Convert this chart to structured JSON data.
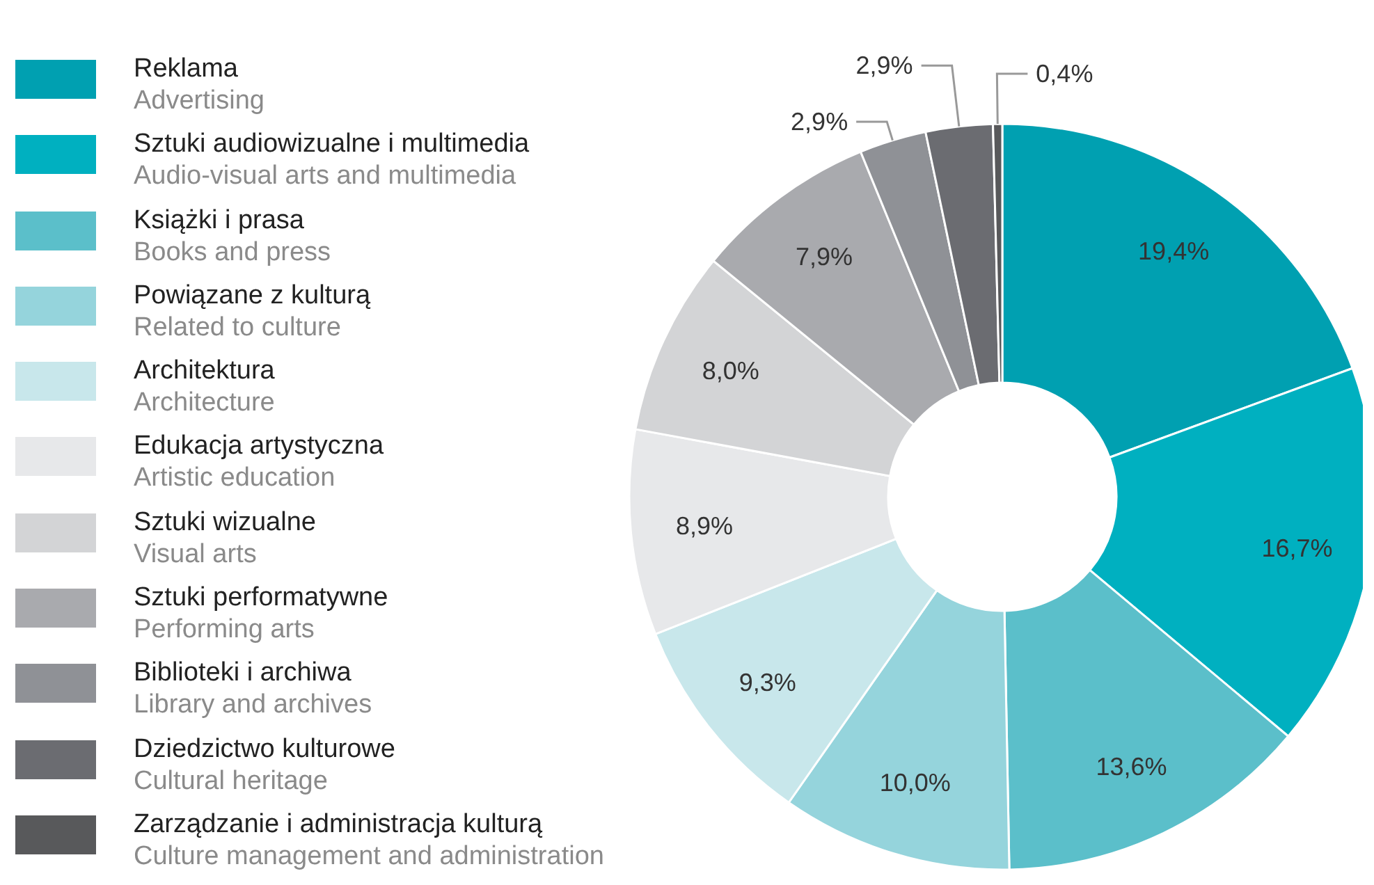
{
  "chart_data": {
    "type": "donut",
    "categories": [
      "Reklama\nAdvertising",
      "Sztuki audiowizualne i multimedia\nAudio-visual arts and multimedia",
      "Książki i prasa\nBooks and press",
      "Powiązane z kulturą\nRelated to culture",
      "Architektura\nArchitecture",
      "Edukacja artystyczna\nArtistic education",
      "Sztuki wizualne\nVisual arts",
      "Sztuki performatywne\nPerforming arts",
      "Biblioteki i archiwa\nLibrary and archives",
      "Dziedzictwo kulturowe\nCultural heritage",
      "Zarządzanie i administracja kulturą\nCulture management and administration"
    ],
    "values": [
      19.4,
      16.7,
      13.6,
      10.0,
      9.3,
      8.9,
      8.0,
      7.9,
      2.9,
      2.9,
      0.4
    ],
    "value_labels": [
      "19,4%",
      "16,7%",
      "13,6%",
      "10,0%",
      "9,3%",
      "8,9%",
      "8,0%",
      "7,9%",
      "2,9%",
      "2,9%",
      "0,4%"
    ],
    "colors": [
      "#00a0b1",
      "#00b0c0",
      "#5bbfca",
      "#95d4dc",
      "#c8e7eb",
      "#e7e8ea",
      "#d3d4d6",
      "#a9aaae",
      "#8f9196",
      "#6b6c71",
      "#58595b"
    ],
    "legend": "left"
  }
}
